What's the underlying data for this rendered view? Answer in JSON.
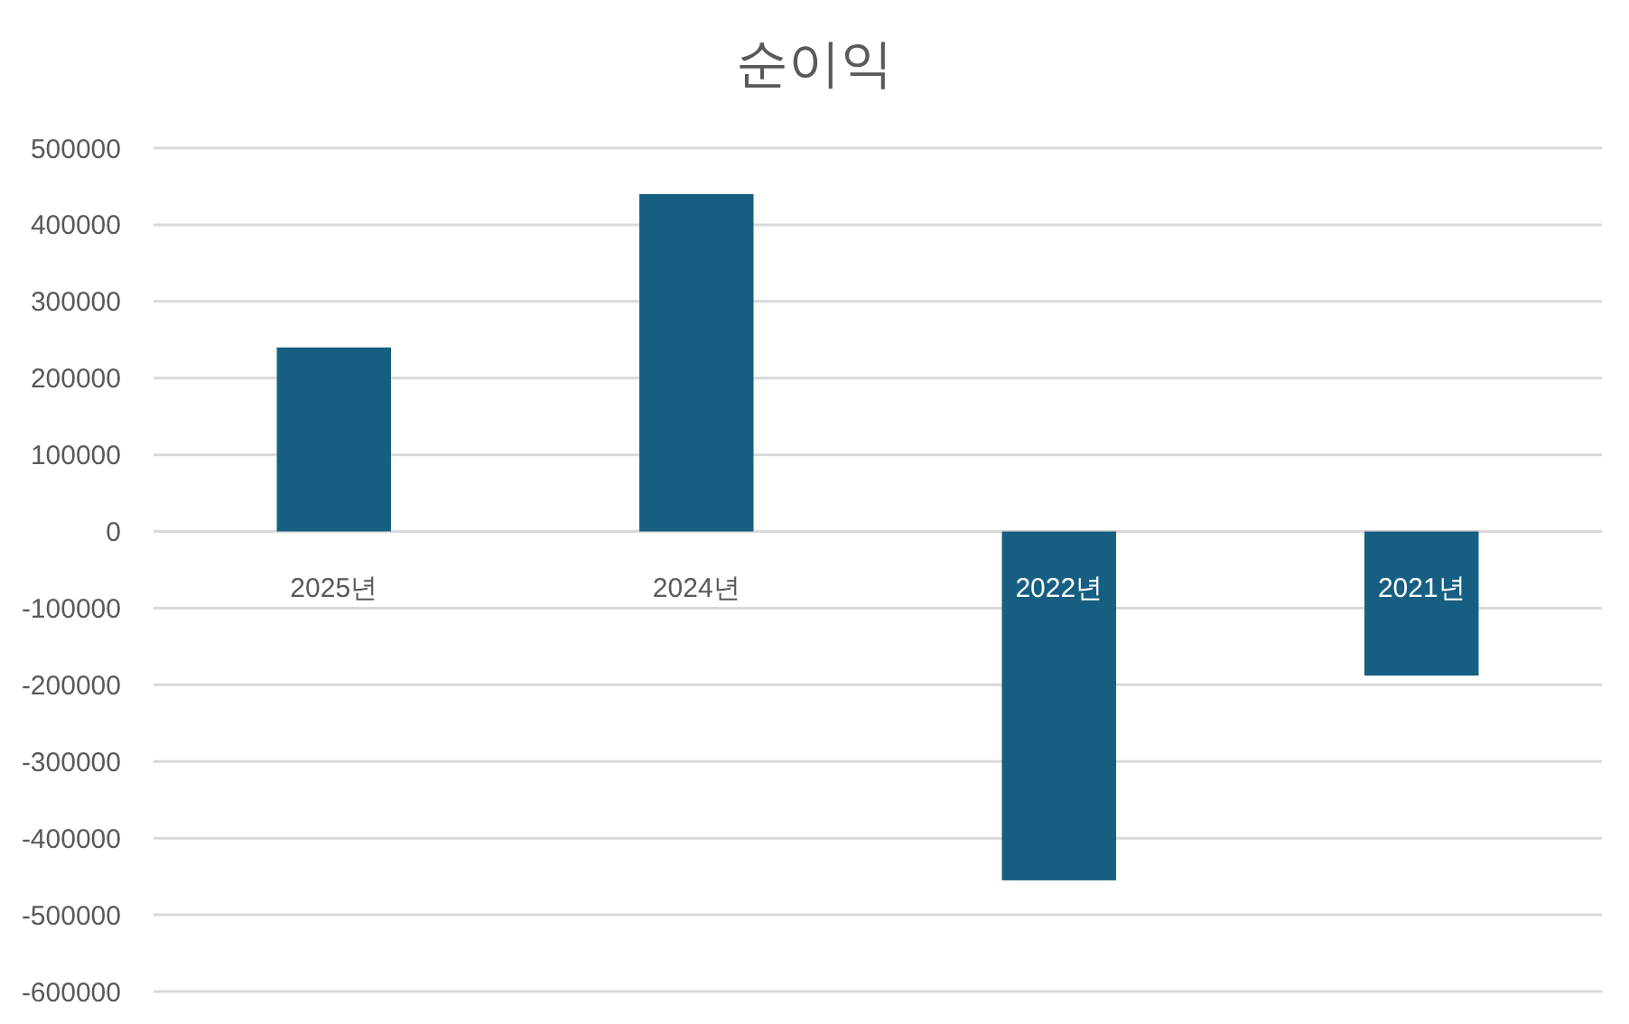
{
  "chart_data": {
    "type": "bar",
    "title": "순이익",
    "categories": [
      "2025년",
      "2024년",
      "2022년",
      "2021년"
    ],
    "values": [
      240000,
      440000,
      -455000,
      -188000
    ],
    "color": "#175f82",
    "ylim": [
      -600000,
      500000
    ],
    "yticks": [
      -600000,
      -500000,
      -400000,
      -300000,
      -200000,
      -100000,
      0,
      100000,
      200000,
      300000,
      400000,
      500000
    ],
    "grid": "y"
  }
}
